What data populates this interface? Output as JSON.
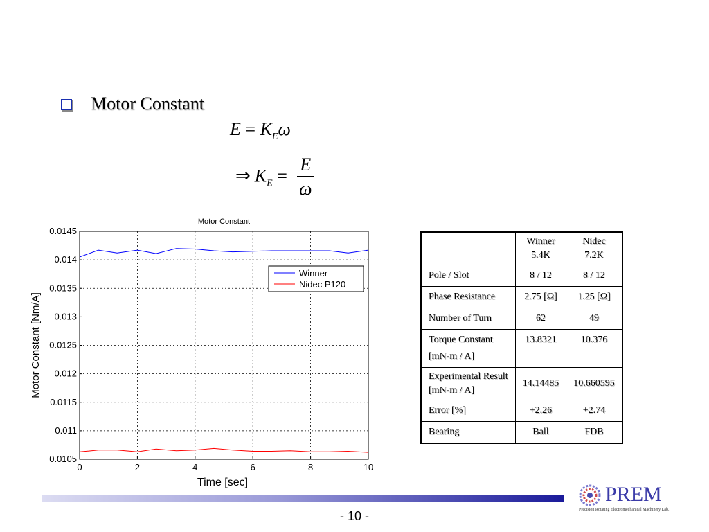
{
  "slide": {
    "heading": "Motor Constant",
    "page_number": "- 10 -"
  },
  "equations": {
    "eq1": {
      "lhs": "E",
      "op": "=",
      "k": "K",
      "k_sub": "E",
      "rhs": "ω"
    },
    "eq2": {
      "implies": "⇒",
      "k": "K",
      "k_sub": "E",
      "op": "=",
      "num": "E",
      "den": "ω"
    }
  },
  "chart_data": {
    "type": "line",
    "title": "Motor Constant",
    "xlabel": "Time [sec]",
    "ylabel": "Motor Constant [Nm/A]",
    "xlim": [
      0,
      10
    ],
    "ylim": [
      0.0105,
      0.0145
    ],
    "xticks": [
      "0",
      "2",
      "4",
      "6",
      "8",
      "10"
    ],
    "yticks": [
      "0.0105",
      "0.011",
      "0.0115",
      "0.012",
      "0.0125",
      "0.013",
      "0.0135",
      "0.014",
      "0.0145"
    ],
    "grid": true,
    "legend_position": "top-right",
    "x": [
      0,
      0.65,
      1.3,
      2.0,
      2.65,
      3.35,
      4.0,
      4.65,
      5.3,
      6.0,
      6.65,
      7.3,
      8.0,
      8.65,
      9.3,
      10.0
    ],
    "series": [
      {
        "name": "Winner",
        "color": "#0000ff",
        "values": [
          0.01405,
          0.01417,
          0.01412,
          0.01417,
          0.01411,
          0.0142,
          0.01419,
          0.01416,
          0.01414,
          0.01415,
          0.01416,
          0.01416,
          0.01416,
          0.01416,
          0.01412,
          0.01417
        ]
      },
      {
        "name": "Nidec P120",
        "color": "#ff0000",
        "values": [
          0.01063,
          0.01066,
          0.01066,
          0.01063,
          0.01068,
          0.01065,
          0.01066,
          0.01069,
          0.01066,
          0.01064,
          0.01064,
          0.01065,
          0.01063,
          0.01063,
          0.01064,
          0.01062
        ]
      }
    ]
  },
  "table": {
    "headers": [
      "",
      "Winner\n5.4K",
      "Nidec\n7.2K"
    ],
    "rows": [
      [
        "Pole / Slot",
        "8 / 12",
        "8 / 12"
      ],
      [
        "Phase Resistance",
        "2.75 [Ω]",
        "1.25 [Ω]"
      ],
      [
        "Number of Turn",
        "62",
        "49"
      ],
      [
        "Torque Constant\n[mN-m / A]",
        "13.8321",
        "10.376"
      ],
      [
        "Experimental Result\n[mN-m / A]",
        "14.14485",
        "10.660595"
      ],
      [
        "Error [%]",
        "+2.26",
        "+2.74"
      ],
      [
        "Bearing",
        "Ball",
        "FDB"
      ]
    ]
  },
  "logo": {
    "name": "PREM",
    "tagline": "Precision Rotating Electromechanical Machinery Lab.",
    "color": "#3a3aa8"
  }
}
